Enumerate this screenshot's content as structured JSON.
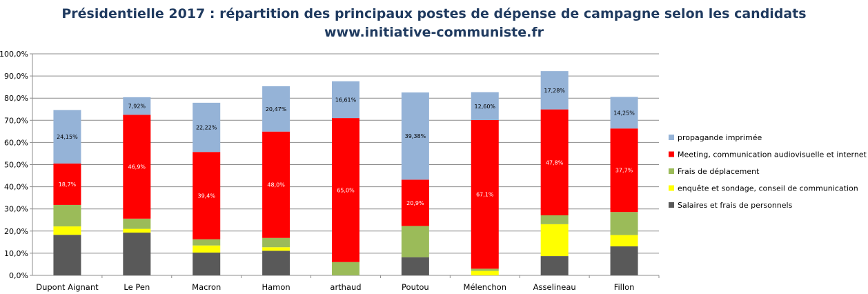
{
  "title": "Présidentielle 2017 : répartition des principaux postes de dépense de campagne selon les candidats",
  "subtitle": "www.initiative-communiste.fr",
  "chart_data": {
    "type": "bar",
    "stacked": true,
    "categories": [
      "Dupont Aignant",
      "Le Pen",
      "Macron",
      "Hamon",
      "arthaud",
      "Poutou",
      "Mélenchon",
      "Asselineau",
      "Fillon"
    ],
    "y_ticks": [
      "0,0%",
      "10,0%",
      "20,0%",
      "30,0%",
      "40,0%",
      "50,0%",
      "60,0%",
      "70,0%",
      "80,0%",
      "90,0%",
      "100,0%"
    ],
    "ylim": [
      0,
      100
    ],
    "grid": true,
    "legend_position": "right",
    "series": [
      {
        "name": "Salaires et frais de personnels",
        "color": "#595959",
        "values": [
          18.3,
          19.3,
          10.3,
          11.1,
          0.0,
          8.2,
          0.0,
          8.7,
          13.1
        ]
      },
      {
        "name": "enquête et sondage, conseil de communication",
        "color": "#ffff00",
        "values": [
          3.8,
          1.7,
          3.2,
          1.6,
          0.0,
          0.0,
          2.0,
          14.4,
          5.1
        ]
      },
      {
        "name": "Frais de déplacement",
        "color": "#9bbb59",
        "values": [
          9.7,
          4.6,
          2.8,
          4.2,
          6.0,
          14.1,
          1.0,
          4.0,
          10.4
        ]
      },
      {
        "name": "Meeting, communication audiovisuelle et internet",
        "color": "#ff0000",
        "values": [
          18.7,
          46.9,
          39.4,
          48.0,
          65.0,
          20.9,
          67.1,
          47.8,
          37.7
        ],
        "labels": [
          "18,7%",
          "46,9%",
          "39,4%",
          "48,0%",
          "65,0%",
          "20,9%",
          "67,1%",
          "47,8%",
          "37,7%"
        ],
        "label_color": "#ffffff"
      },
      {
        "name": "propagande imprimée",
        "color": "#95b3d7",
        "values": [
          24.15,
          7.92,
          22.22,
          20.47,
          16.61,
          39.38,
          12.6,
          17.28,
          14.25
        ],
        "labels": [
          "24,15%",
          "7,92%",
          "22,22%",
          "20,47%",
          "16,61%",
          "39,38%",
          "12,60%",
          "17,28%",
          "14,25%"
        ],
        "label_color": "#000000"
      }
    ]
  }
}
